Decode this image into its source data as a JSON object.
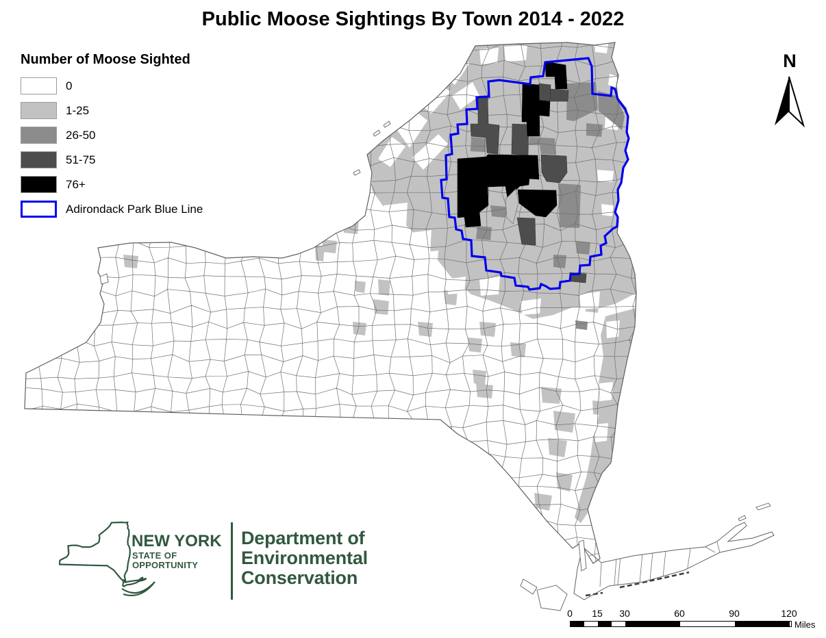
{
  "title": "Public Moose Sightings By Town 2014 - 2022",
  "legend": {
    "title": "Number of Moose Sighted",
    "classes": [
      {
        "label": "0",
        "color": "#ffffff"
      },
      {
        "label": "1-25",
        "color": "#c2c2c2"
      },
      {
        "label": "26-50",
        "color": "#8c8c8c"
      },
      {
        "label": "51-75",
        "color": "#4d4d4d"
      },
      {
        "label": "76+",
        "color": "#000000"
      }
    ],
    "boundary": {
      "label": "Adirondack Park Blue Line",
      "color": "#0000ee"
    }
  },
  "north_arrow": {
    "label": "N"
  },
  "scale_bar": {
    "ticks": [
      "0",
      "15",
      "30",
      "60",
      "90",
      "120"
    ],
    "unit": "Miles"
  },
  "logo": {
    "brand_color": "#31583f",
    "line1": "NEW YORK",
    "line2": "STATE OF",
    "line3": "OPPORTUNITY",
    "dept_line1": "Department of",
    "dept_line2": "Environmental",
    "dept_line3": "Conservation"
  },
  "map": {
    "land_color": "#ffffff",
    "town_border_color": "#6f6f6f",
    "outline_color": "#5f5f5f"
  }
}
